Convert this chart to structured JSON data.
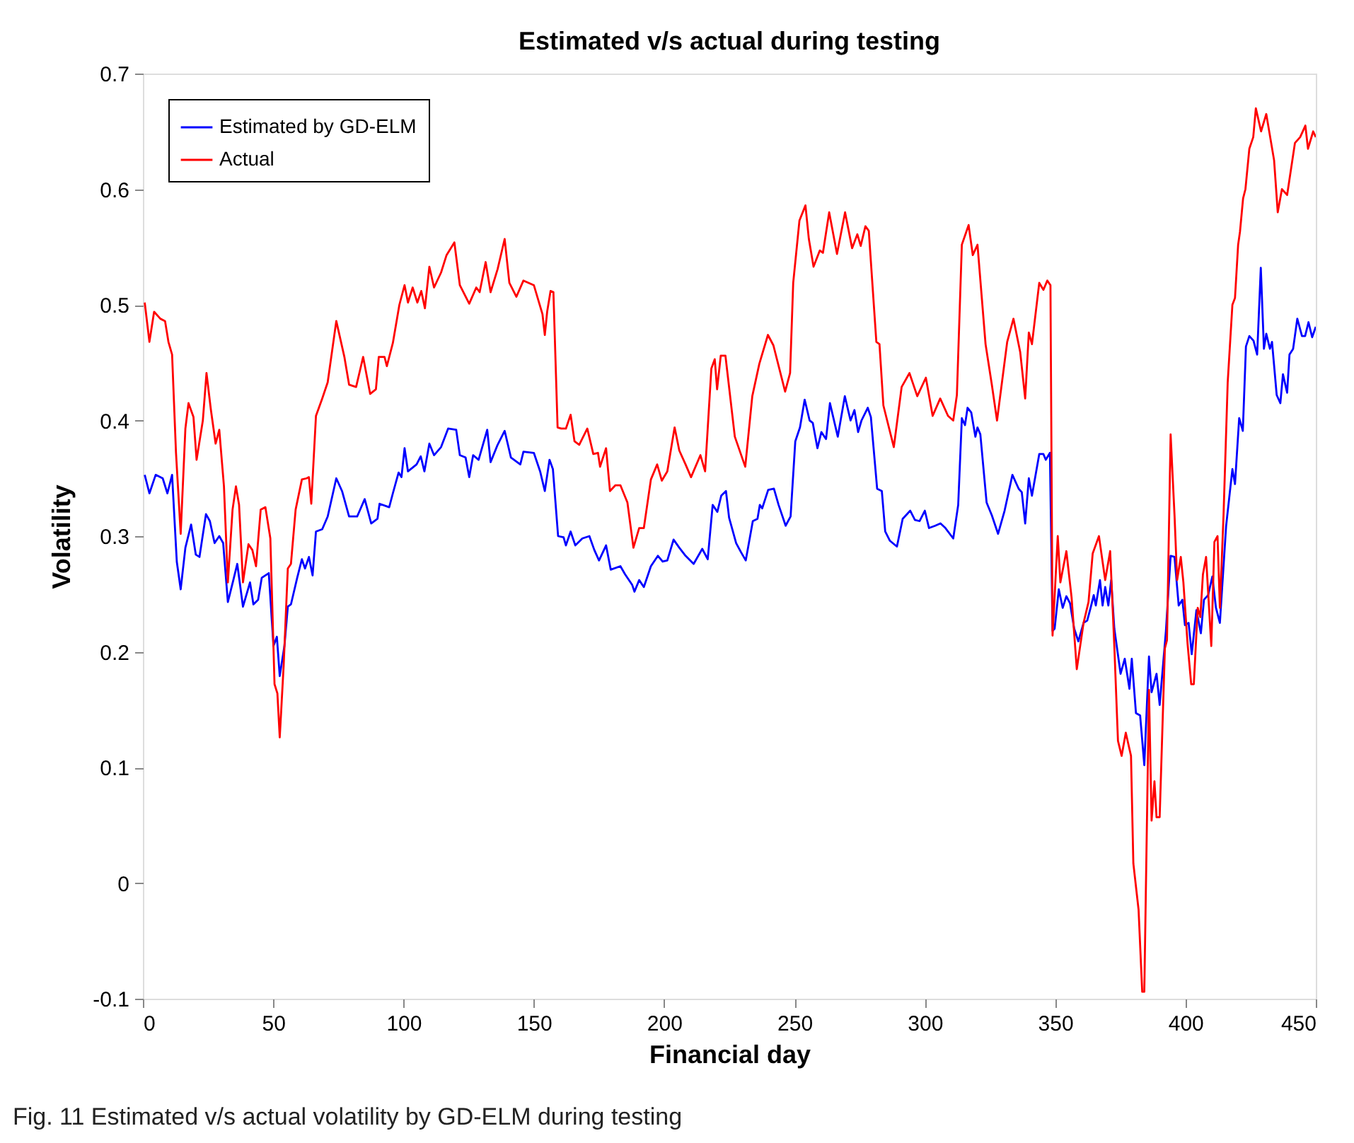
{
  "chart_data": {
    "type": "line",
    "title": "Estimated v/s actual during testing",
    "xlabel": "Financial day",
    "ylabel": "Volatility",
    "annotations": [
      "Fig. 11 Estimated v/s actual volatility by GD-ELM during testing"
    ],
    "xlim": [
      0,
      450
    ],
    "xticks": [
      0,
      50,
      100,
      150,
      200,
      250,
      300,
      350,
      400,
      450
    ],
    "ylim": [
      -0.1,
      0.7
    ],
    "yticks": [
      -0.1,
      0,
      0.1,
      0.2,
      0.3,
      0.4,
      0.5,
      0.6,
      0.7
    ],
    "grid": false,
    "legend": "top left",
    "line_style": "solid",
    "series": [
      {
        "name": "Estimated by GD-ELM",
        "color": "#0000ff",
        "x": [
          0.7,
          2.5,
          4.9,
          7.6,
          9.4,
          11.2,
          13,
          14.5,
          16.3,
          18.5,
          20.3,
          21.7,
          24.2,
          25.7,
          27.5,
          29.3,
          30.8,
          32.6,
          34.7,
          36.2,
          38.4,
          41.1,
          42.4,
          44.2,
          45.6,
          48.3,
          50.1,
          51.4,
          52.5,
          54.3,
          55.6,
          56.8,
          59.2,
          61.0,
          62.2,
          63.7,
          65.1,
          66.4,
          68.8,
          70.9,
          74.2,
          76.4,
          79.1,
          82.2,
          85.1,
          87.6,
          90.0,
          90.8,
          94.5,
          95.9,
          98.1,
          99.2,
          100.4,
          101.7,
          105,
          106.6,
          108.0,
          109.9,
          111.7,
          114.4,
          117.1,
          120.2,
          121.6,
          123.8,
          125.2,
          126.7,
          128.8,
          132.1,
          133.4,
          136.1,
          138.8,
          141.2,
          144.8,
          146.0,
          150.0,
          152.4,
          154.2,
          156.0,
          157.3,
          159.3,
          161.4,
          162.3,
          164.1,
          165.9,
          168.6,
          171.3,
          173.2,
          175.0,
          177.7,
          179.5,
          183.2,
          185.0,
          187.7,
          188.6,
          190.4,
          192.2,
          194.9,
          197.6,
          199.4,
          201.2,
          203.6,
          205.8,
          208.2,
          211.3,
          214.6,
          216.7,
          218.6,
          220.4,
          221.9,
          223.7,
          224.9,
          227.6,
          229.5,
          231.3,
          234.0,
          235.8,
          236.7,
          237.6,
          239.9,
          242.1,
          243.9,
          246.6,
          248.5,
          250.3,
          252.1,
          253.9,
          255.8,
          257.0,
          258.8,
          260.3,
          262.1,
          263.6,
          266.6,
          269.3,
          271.5,
          273.0,
          274.4,
          275.7,
          278.1,
          279.3,
          281.7,
          283.5,
          284.8,
          286.6,
          289.3,
          291.5,
          294.4,
          296.2,
          298.0,
          300.0,
          301.6,
          304.0,
          306.0,
          307.9,
          310.9,
          312.8,
          314.2,
          315.4,
          316.4,
          317.8,
          319.4,
          320.2,
          321.3,
          323.7,
          325.7,
          328.1,
          330.6,
          333.6,
          336.0,
          337.2,
          338.5,
          339.9,
          341.1,
          343.9,
          345.5,
          346.4,
          348.0,
          349.0,
          349.8,
          351.4,
          352.9,
          354.3,
          355.7,
          357.3,
          358.9,
          360.9,
          362.3,
          363.6,
          364.8,
          365.6,
          367.2,
          368.2,
          369.2,
          370.4,
          371.5,
          372.7,
          375.1,
          376.7,
          378.5,
          379.4,
          381.0,
          382.6,
          384.2,
          386.0,
          387.0,
          388.9,
          390.1,
          392.5,
          394.3,
          395.8,
          397.4,
          398.8,
          399.8,
          401.2,
          402.4,
          404.2,
          405.9,
          407.1,
          408.7,
          410.3,
          411.7,
          413.2,
          415.6,
          418.0,
          419.0,
          420.6,
          422.0,
          423.2,
          424.5,
          426.1,
          427.5,
          428.9,
          430.1,
          431.0,
          432.4,
          433.2,
          435.0,
          436.4,
          437.4,
          439.0,
          439.9,
          441.3,
          442.9,
          444.7,
          445.9,
          447.2,
          448.6,
          450.0
        ],
        "values": [
          0.353,
          0.337,
          0.353,
          0.35,
          0.337,
          0.353,
          0.278,
          0.254,
          0.29,
          0.31,
          0.284,
          0.282,
          0.319,
          0.313,
          0.294,
          0.3,
          0.294,
          0.243,
          0.262,
          0.276,
          0.239,
          0.26,
          0.241,
          0.245,
          0.264,
          0.268,
          0.205,
          0.213,
          0.179,
          0.205,
          0.239,
          0.241,
          0.264,
          0.28,
          0.272,
          0.282,
          0.266,
          0.304,
          0.306,
          0.317,
          0.35,
          0.339,
          0.317,
          0.317,
          0.332,
          0.311,
          0.315,
          0.328,
          0.325,
          0.337,
          0.355,
          0.351,
          0.376,
          0.356,
          0.362,
          0.369,
          0.356,
          0.38,
          0.37,
          0.377,
          0.393,
          0.392,
          0.37,
          0.368,
          0.351,
          0.37,
          0.366,
          0.392,
          0.364,
          0.379,
          0.391,
          0.368,
          0.362,
          0.373,
          0.372,
          0.356,
          0.339,
          0.366,
          0.358,
          0.3,
          0.299,
          0.292,
          0.304,
          0.292,
          0.298,
          0.3,
          0.288,
          0.279,
          0.292,
          0.271,
          0.274,
          0.267,
          0.258,
          0.252,
          0.262,
          0.256,
          0.274,
          0.283,
          0.278,
          0.279,
          0.297,
          0.29,
          0.283,
          0.276,
          0.289,
          0.28,
          0.327,
          0.321,
          0.335,
          0.339,
          0.316,
          0.294,
          0.286,
          0.279,
          0.313,
          0.315,
          0.327,
          0.324,
          0.34,
          0.341,
          0.327,
          0.309,
          0.317,
          0.382,
          0.394,
          0.418,
          0.4,
          0.398,
          0.376,
          0.39,
          0.384,
          0.415,
          0.386,
          0.421,
          0.4,
          0.409,
          0.39,
          0.4,
          0.411,
          0.403,
          0.341,
          0.339,
          0.304,
          0.296,
          0.291,
          0.315,
          0.322,
          0.314,
          0.313,
          0.322,
          0.307,
          0.309,
          0.311,
          0.307,
          0.298,
          0.327,
          0.402,
          0.396,
          0.411,
          0.407,
          0.386,
          0.394,
          0.388,
          0.329,
          0.318,
          0.302,
          0.322,
          0.353,
          0.341,
          0.338,
          0.311,
          0.35,
          0.335,
          0.371,
          0.371,
          0.366,
          0.372,
          0.218,
          0.22,
          0.254,
          0.238,
          0.248,
          0.242,
          0.22,
          0.209,
          0.225,
          0.227,
          0.238,
          0.249,
          0.24,
          0.262,
          0.24,
          0.256,
          0.24,
          0.262,
          0.22,
          0.181,
          0.194,
          0.168,
          0.194,
          0.147,
          0.145,
          0.102,
          0.196,
          0.165,
          0.181,
          0.154,
          0.218,
          0.283,
          0.282,
          0.24,
          0.245,
          0.223,
          0.225,
          0.198,
          0.236,
          0.216,
          0.245,
          0.249,
          0.265,
          0.238,
          0.225,
          0.309,
          0.358,
          0.345,
          0.402,
          0.391,
          0.464,
          0.473,
          0.469,
          0.457,
          0.532,
          0.462,
          0.475,
          0.462,
          0.468,
          0.422,
          0.415,
          0.44,
          0.424,
          0.457,
          0.462,
          0.488,
          0.473,
          0.473,
          0.485,
          0.472,
          0.481
        ]
      },
      {
        "name": "Actual",
        "color": "#ff0000",
        "x": [
          0.7,
          2.5,
          4.3,
          6.7,
          8.5,
          9.8,
          11.2,
          12.7,
          14.5,
          16.3,
          17.5,
          19.4,
          20.6,
          23.0,
          24.4,
          26.1,
          27.9,
          29.3,
          31.1,
          32.6,
          34.4,
          35.7,
          36.9,
          38.4,
          40.5,
          42.0,
          43.4,
          45.2,
          47.0,
          48.9,
          50.5,
          51.6,
          52.5,
          54.0,
          55.6,
          56.8,
          58.6,
          61.0,
          62.8,
          63.7,
          64.6,
          66.4,
          68.8,
          70.9,
          74.2,
          77.3,
          79.1,
          81.8,
          84.5,
          87.2,
          89.4,
          90.5,
          92.7,
          93.6,
          95.9,
          98.4,
          100.4,
          101.7,
          103.5,
          105.3,
          106.8,
          108.2,
          109.9,
          111.7,
          114.4,
          116.5,
          119.5,
          121.6,
          125.2,
          127.9,
          129.2,
          131.5,
          133.4,
          136.1,
          138.8,
          140.6,
          143.3,
          146.0,
          150.0,
          153.3,
          154.2,
          155.1,
          156.4,
          157.5,
          159.1,
          160.5,
          162.3,
          164.1,
          165.6,
          167.4,
          170.5,
          172.8,
          174.6,
          175.4,
          177.7,
          179.2,
          181.3,
          183.2,
          185.9,
          188.2,
          190.4,
          192.2,
          194.9,
          197.3,
          199.1,
          201.2,
          204.0,
          205.8,
          208.2,
          210.3,
          213.9,
          215.7,
          218.1,
          219.4,
          220.3,
          221.7,
          223.5,
          227.1,
          231.1,
          233.8,
          236.5,
          239.8,
          241.9,
          246.4,
          248.3,
          249.5,
          251.9,
          254.2,
          255.5,
          257.3,
          259.7,
          260.9,
          263.3,
          266.3,
          269.4,
          272.1,
          274.1,
          275.4,
          277.2,
          278.5,
          281.4,
          282.6,
          284.1,
          288.1,
          291.1,
          294.1,
          297.1,
          300.4,
          303.0,
          305.9,
          308.9,
          310.9,
          312.3,
          314.2,
          316.8,
          318.4,
          320.2,
          323.3,
          325.7,
          327.7,
          331.6,
          334.0,
          336.6,
          338.5,
          339.9,
          341.1,
          343.9,
          345.5,
          347.0,
          348.2,
          349.0,
          351.0,
          352.0,
          354.3,
          356.3,
          358.3,
          360.9,
          362.8,
          364.4,
          366.8,
          369.2,
          371.1,
          372.7,
          374.1,
          375.5,
          377.1,
          379.1,
          380.0,
          382.0,
          383.4,
          384.2,
          386.0,
          387.0,
          388.1,
          388.9,
          390.1,
          392.1,
          392.9,
          394.3,
          395.8,
          396.8,
          398.2,
          399.2,
          400.8,
          402.2,
          403.2,
          404.7,
          405.7,
          406.7,
          407.9,
          409.9,
          411.1,
          412.3,
          413.2,
          414.6,
          416.2,
          418.0,
          419.0,
          420.2,
          420.9,
          422.1,
          423.0,
          424.5,
          426.0,
          427.0,
          429.0,
          431.0,
          434.0,
          435.4,
          437.0,
          439.0,
          442.0,
          444.0,
          446.0,
          447.0,
          449.0,
          450.0
        ],
        "values": [
          0.502,
          0.468,
          0.494,
          0.488,
          0.486,
          0.468,
          0.457,
          0.372,
          0.302,
          0.393,
          0.415,
          0.403,
          0.366,
          0.4,
          0.441,
          0.409,
          0.38,
          0.392,
          0.343,
          0.26,
          0.323,
          0.343,
          0.327,
          0.26,
          0.293,
          0.288,
          0.274,
          0.323,
          0.325,
          0.298,
          0.172,
          0.164,
          0.126,
          0.188,
          0.272,
          0.276,
          0.323,
          0.349,
          0.35,
          0.351,
          0.328,
          0.404,
          0.419,
          0.433,
          0.486,
          0.455,
          0.431,
          0.429,
          0.455,
          0.423,
          0.427,
          0.455,
          0.455,
          0.447,
          0.467,
          0.5,
          0.517,
          0.502,
          0.515,
          0.502,
          0.512,
          0.497,
          0.533,
          0.515,
          0.528,
          0.543,
          0.554,
          0.517,
          0.501,
          0.515,
          0.511,
          0.537,
          0.511,
          0.531,
          0.557,
          0.519,
          0.507,
          0.521,
          0.517,
          0.492,
          0.474,
          0.494,
          0.512,
          0.511,
          0.394,
          0.393,
          0.393,
          0.405,
          0.382,
          0.379,
          0.393,
          0.371,
          0.372,
          0.36,
          0.376,
          0.339,
          0.344,
          0.344,
          0.329,
          0.29,
          0.307,
          0.307,
          0.349,
          0.362,
          0.348,
          0.356,
          0.394,
          0.374,
          0.362,
          0.351,
          0.37,
          0.356,
          0.445,
          0.453,
          0.427,
          0.456,
          0.456,
          0.386,
          0.36,
          0.421,
          0.449,
          0.474,
          0.465,
          0.425,
          0.441,
          0.519,
          0.573,
          0.586,
          0.557,
          0.533,
          0.547,
          0.545,
          0.58,
          0.544,
          0.58,
          0.549,
          0.561,
          0.551,
          0.568,
          0.564,
          0.468,
          0.466,
          0.413,
          0.377,
          0.429,
          0.441,
          0.421,
          0.437,
          0.404,
          0.419,
          0.404,
          0.4,
          0.422,
          0.552,
          0.569,
          0.543,
          0.552,
          0.466,
          0.431,
          0.4,
          0.468,
          0.488,
          0.459,
          0.419,
          0.476,
          0.466,
          0.519,
          0.513,
          0.521,
          0.517,
          0.214,
          0.3,
          0.26,
          0.287,
          0.247,
          0.185,
          0.225,
          0.243,
          0.285,
          0.3,
          0.262,
          0.287,
          0.205,
          0.123,
          0.11,
          0.13,
          0.11,
          0.017,
          -0.023,
          -0.094,
          -0.094,
          0.167,
          0.054,
          0.088,
          0.057,
          0.057,
          0.203,
          0.21,
          0.388,
          0.318,
          0.262,
          0.282,
          0.26,
          0.207,
          0.172,
          0.172,
          0.238,
          0.23,
          0.267,
          0.282,
          0.205,
          0.295,
          0.3,
          0.238,
          0.318,
          0.433,
          0.5,
          0.506,
          0.552,
          0.563,
          0.592,
          0.6,
          0.635,
          0.645,
          0.67,
          0.65,
          0.665,
          0.625,
          0.58,
          0.6,
          0.595,
          0.64,
          0.645,
          0.655,
          0.635,
          0.65,
          0.645
        ]
      }
    ]
  }
}
